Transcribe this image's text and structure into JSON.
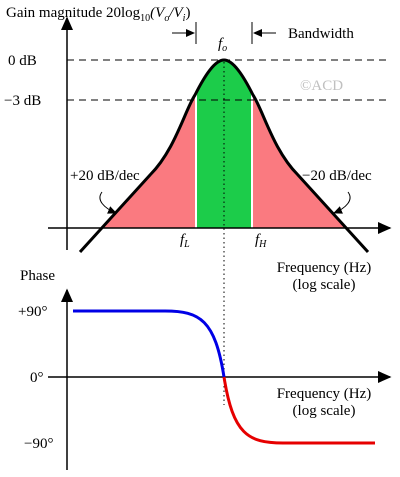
{
  "gain": {
    "title": [
      "Gain magnitude 20log",
      "10",
      "(V",
      "o",
      "/V",
      "i",
      ")"
    ],
    "zero_db": "0 dB",
    "minus3_db": "−3 dB",
    "center": [
      "f",
      "o"
    ],
    "bandwidth": "Bandwidth",
    "copyright": "©ACD",
    "left_slope": "+20 dB/dec",
    "right_slope": "−20 dB/dec",
    "f_low": [
      "f",
      "L"
    ],
    "f_high": [
      "f",
      "H"
    ],
    "x_label": [
      "Frequency (Hz)",
      "(log scale)"
    ]
  },
  "phase": {
    "title": "Phase",
    "plus90": "+90°",
    "zero": "0°",
    "minus90": "−90°",
    "x_label": [
      "Frequency (Hz)",
      "(log scale)"
    ]
  }
}
